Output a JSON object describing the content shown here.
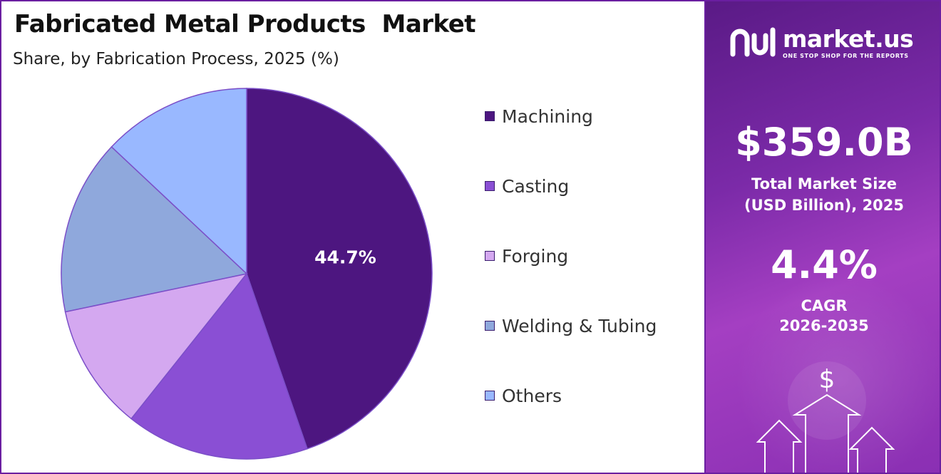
{
  "header": {
    "title": "Fabricated Metal Products  Market",
    "subtitle": "Share, by Fabrication Process, 2025 (%)"
  },
  "chart_data": {
    "type": "pie",
    "title": "Fabricated Metal Products  Market",
    "subtitle": "Share, by Fabrication Process, 2025 (%)",
    "categories": [
      "Machining",
      "Casting",
      "Forging",
      "Welding & Tubing",
      "Others"
    ],
    "values": [
      44.7,
      16.0,
      11.0,
      15.3,
      13.0
    ],
    "colors": [
      "#4d1680",
      "#8a4fd4",
      "#d4a8f0",
      "#8fa8dc",
      "#99b8ff"
    ],
    "data_labels": [
      "44.7%",
      "",
      "",
      "",
      ""
    ],
    "legend_position": "right"
  },
  "brand": {
    "name": "market.us",
    "tagline": "ONE STOP SHOP FOR THE REPORTS"
  },
  "stats": {
    "market_size_value": "$359.0B",
    "market_size_label_line1": "Total Market Size",
    "market_size_label_line2": "(USD Billion), 2025",
    "cagr_value": "4.4%",
    "cagr_label_line1": "CAGR",
    "cagr_label_line2": "2026-2035"
  },
  "decor": {
    "dollar_symbol": "$"
  }
}
